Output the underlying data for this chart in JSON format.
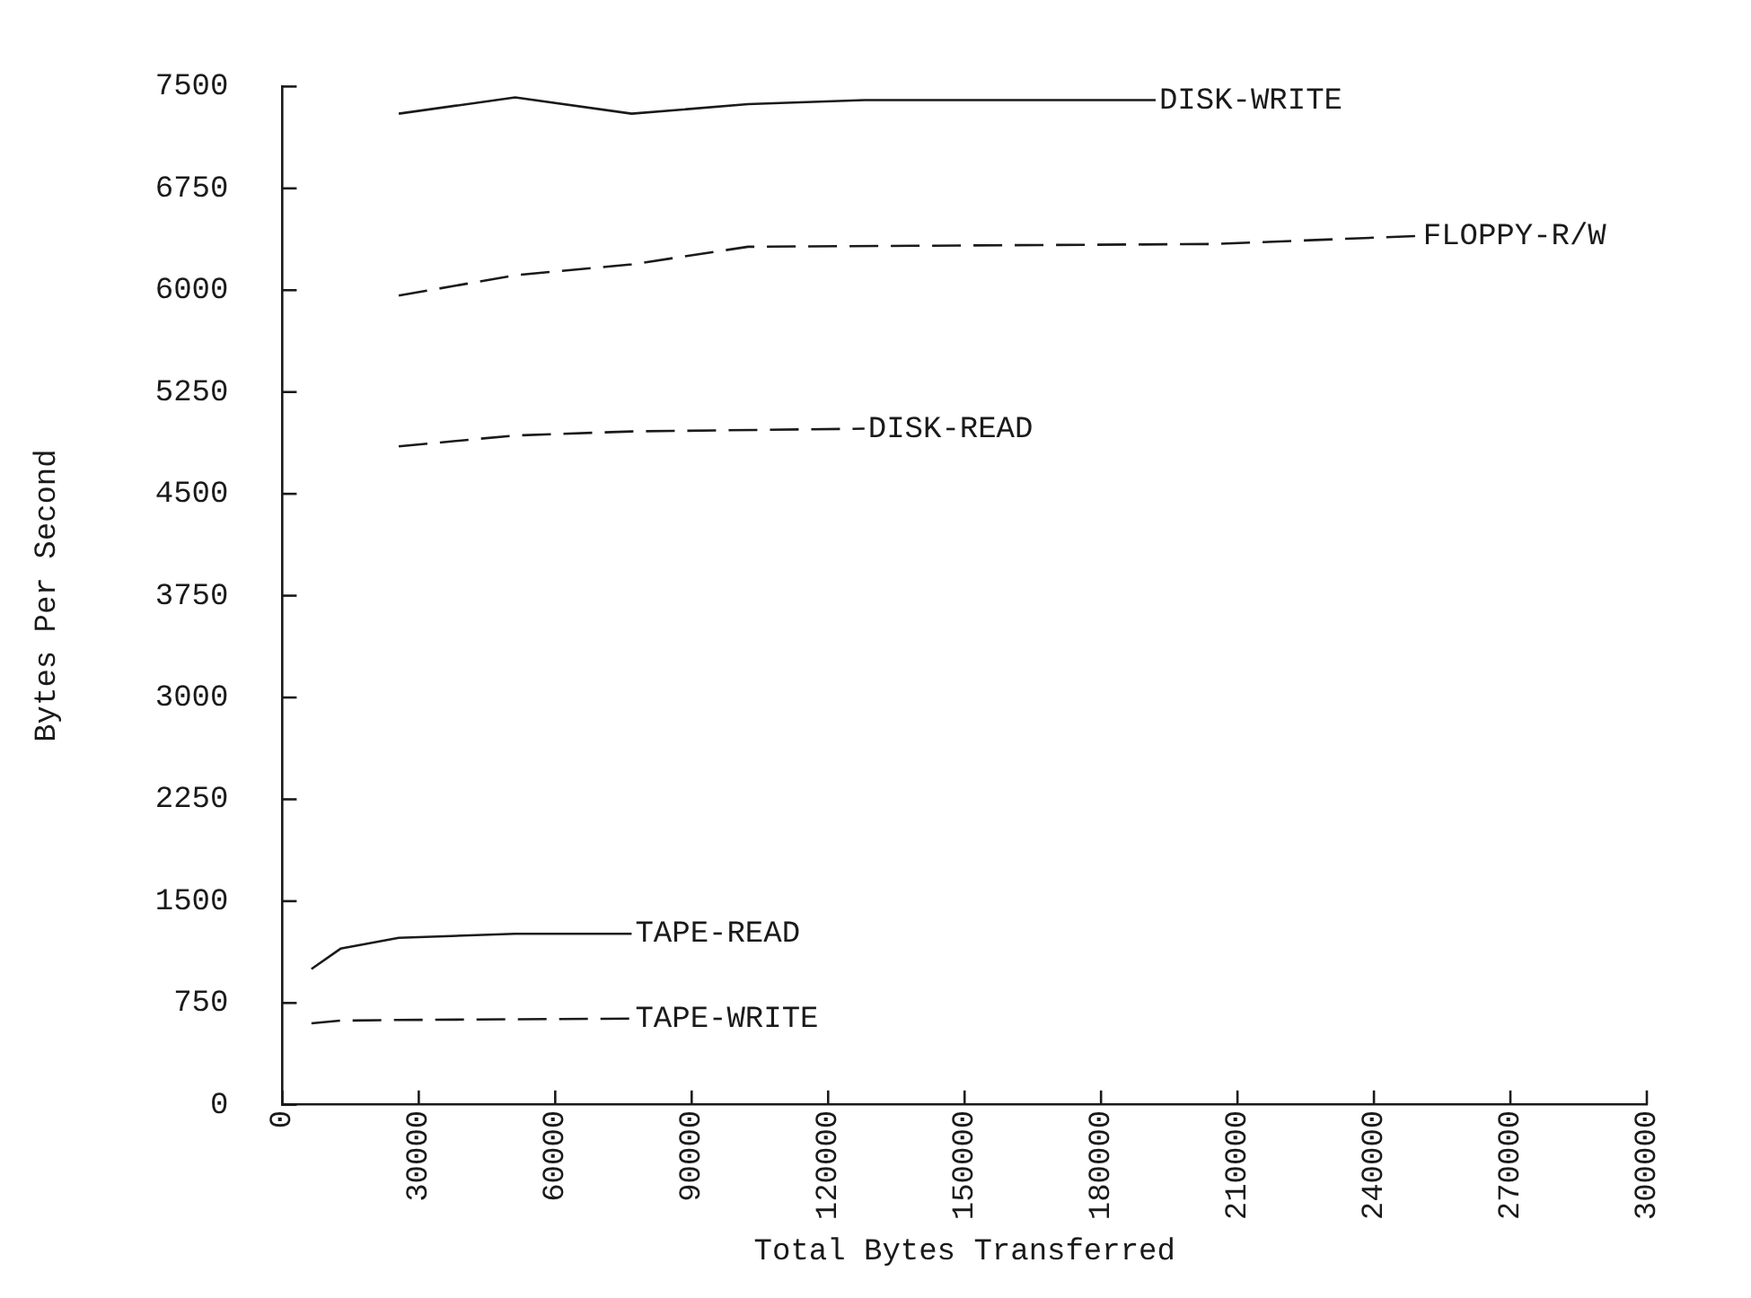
{
  "chart_data": {
    "type": "line",
    "xlabel": "Total Bytes Transferred",
    "ylabel": "Bytes Per Second",
    "xlim": [
      0,
      300000
    ],
    "xticks": [
      0,
      30000,
      60000,
      90000,
      120000,
      150000,
      180000,
      210000,
      240000,
      270000,
      300000
    ],
    "ylim": [
      0,
      7500
    ],
    "yticks": [
      0,
      750,
      1500,
      2250,
      3000,
      3750,
      4500,
      5250,
      6000,
      6750,
      7500
    ],
    "grid": false,
    "legend": false,
    "marker": "none",
    "series": [
      {
        "name": "DISK-WRITE",
        "color": "#1a1a1a",
        "line_style": "solid",
        "x": [
          25600,
          51200,
          76800,
          102400,
          128000,
          192000
        ],
        "values": [
          7300,
          7420,
          7300,
          7370,
          7400,
          7400
        ]
      },
      {
        "name": "FLOPPY-R/W",
        "color": "#1a1a1a",
        "line_style": "dashed",
        "x": [
          25600,
          51200,
          76800,
          102400,
          204800,
          250000
        ],
        "values": [
          5960,
          6110,
          6190,
          6320,
          6340,
          6400
        ]
      },
      {
        "name": "DISK-READ",
        "color": "#1a1a1a",
        "line_style": "dashed",
        "x": [
          25600,
          51200,
          76800,
          128000
        ],
        "values": [
          4850,
          4930,
          4960,
          4980
        ]
      },
      {
        "name": "TAPE-READ",
        "color": "#1a1a1a",
        "line_style": "solid",
        "x": [
          6400,
          12800,
          25600,
          51200,
          76800
        ],
        "values": [
          1000,
          1150,
          1230,
          1260,
          1260
        ]
      },
      {
        "name": "TAPE-WRITE",
        "color": "#1a1a1a",
        "line_style": "dashed",
        "x": [
          6400,
          12800,
          25600,
          51200,
          76800
        ],
        "values": [
          600,
          620,
          625,
          630,
          635
        ]
      }
    ]
  }
}
